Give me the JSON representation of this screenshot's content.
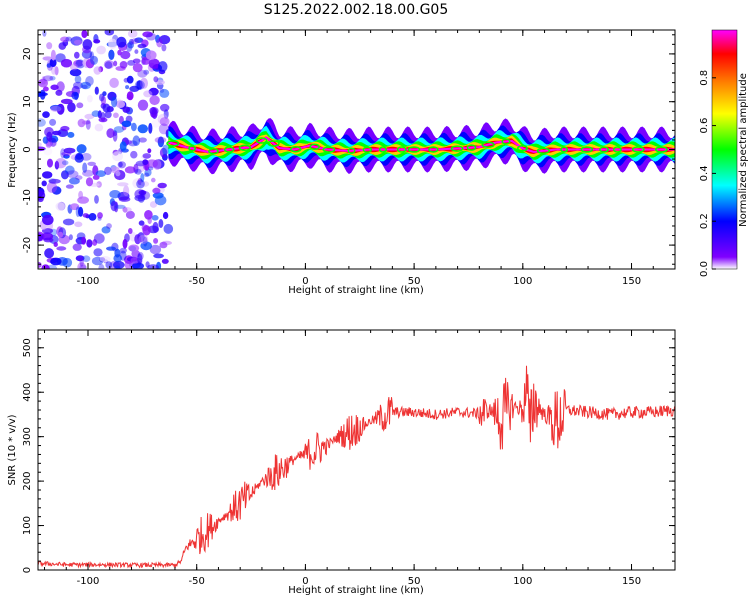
{
  "figure": {
    "title": "S125.2022.002.18.00.G05"
  },
  "chart_data": [
    {
      "type": "heatmap",
      "title": "",
      "xlabel": "Height of straight line (km)",
      "ylabel": "Frequency (Hz)",
      "xlim": [
        -123,
        170
      ],
      "ylim": [
        -25,
        25
      ],
      "x_ticks": [
        -100,
        -50,
        0,
        50,
        100,
        150
      ],
      "y_ticks": [
        -20,
        -10,
        0,
        10,
        20
      ],
      "colorbar": {
        "label": "Normalized spectral amplitude",
        "range": [
          0,
          1
        ],
        "ticks": [
          0.0,
          0.2,
          0.4,
          0.6,
          0.8
        ],
        "colors": [
          "#ffffff",
          "#8000ff",
          "#0000ff",
          "#00ffff",
          "#00ff00",
          "#ffff00",
          "#ff8000",
          "#ff0000",
          "#ff00ff"
        ]
      },
      "noise_region": {
        "x_from": -123,
        "x_to": -63,
        "freq_from": -25,
        "freq_to": 25,
        "amplitude_max": 0.25
      },
      "ridge": {
        "x": [
          -63,
          -55,
          -45,
          -35,
          -25,
          -18,
          -12,
          -5,
          2,
          10,
          20,
          30,
          40,
          50,
          60,
          70,
          80,
          88,
          95,
          100,
          105,
          115,
          130,
          150,
          170
        ],
        "frequency": [
          1.5,
          0.5,
          -0.5,
          0,
          0.5,
          2.5,
          0.3,
          0,
          0.8,
          0,
          -0.3,
          0,
          0,
          0,
          0,
          0.2,
          0.5,
          1.5,
          1.8,
          0.2,
          -0.5,
          0,
          0,
          0,
          0
        ],
        "amplitude": 1.0
      }
    },
    {
      "type": "line",
      "title": "",
      "xlabel": "Height of straight line (km)",
      "ylabel": "SNR (10 * v/v)",
      "xlim": [
        -123,
        170
      ],
      "ylim": [
        0,
        540
      ],
      "x_ticks": [
        -100,
        -50,
        0,
        50,
        100,
        150
      ],
      "y_ticks": [
        0,
        100,
        200,
        300,
        400,
        500
      ],
      "color": "#ee3333",
      "series": [
        {
          "x": [
            -123,
            -110,
            -100,
            -90,
            -80,
            -70,
            -60,
            -57,
            -55,
            -50,
            -45,
            -40,
            -35,
            -30,
            -25,
            -20,
            -15,
            -10,
            -5,
            0,
            5,
            10,
            15,
            20,
            25,
            30,
            35,
            40,
            50,
            60,
            70,
            80,
            85,
            90,
            95,
            100,
            102,
            103,
            105,
            110,
            115,
            120,
            130,
            140,
            150,
            160,
            170
          ],
          "values": [
            15,
            12,
            12,
            12,
            11,
            11,
            11,
            20,
            50,
            70,
            90,
            110,
            130,
            150,
            170,
            200,
            215,
            230,
            250,
            260,
            270,
            280,
            300,
            310,
            320,
            335,
            345,
            355,
            355,
            350,
            355,
            352,
            360,
            340,
            370,
            360,
            420,
            300,
            380,
            350,
            330,
            360,
            355,
            350,
            355,
            355,
            360
          ]
        }
      ]
    }
  ]
}
